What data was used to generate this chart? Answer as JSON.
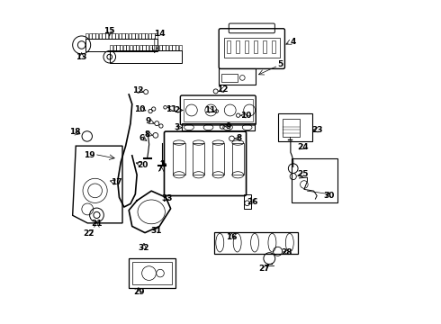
{
  "background": "#ffffff",
  "line_color": "#000000"
}
